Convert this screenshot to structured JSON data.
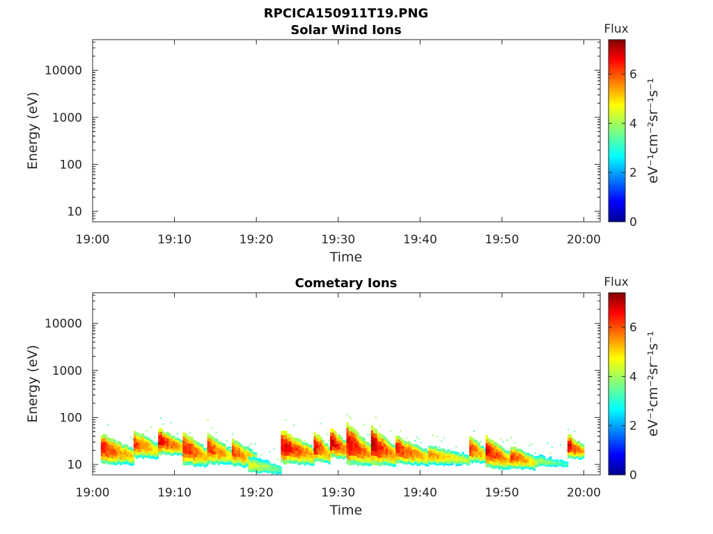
{
  "figure": {
    "title": "RPCICA150911T19.PNG"
  },
  "colorbar": {
    "title": "Flux",
    "label": "eV⁻¹cm⁻²sr⁻¹s⁻¹",
    "range": [
      0,
      7.4
    ],
    "ticks": [
      "0",
      "2",
      "4",
      "6"
    ],
    "colormap": "jet"
  },
  "chart_data": [
    {
      "type": "heatmap",
      "title": "Solar Wind Ions",
      "xlabel": "Time",
      "ylabel": "Energy (eV)",
      "xlim": [
        "19:00",
        "20:02"
      ],
      "ylim": [
        6,
        45000
      ],
      "yscale": "log",
      "x_ticks": [
        "19:00",
        "19:10",
        "19:20",
        "19:30",
        "19:40",
        "19:50",
        "20:00"
      ],
      "y_ticks": [
        "10",
        "100",
        "1000",
        "10000"
      ],
      "grid": false,
      "data": []
    },
    {
      "type": "heatmap",
      "title": "Cometary Ions",
      "xlabel": "Time",
      "ylabel": "Energy (eV)",
      "xlim": [
        "19:00",
        "20:02"
      ],
      "ylim": [
        6,
        45000
      ],
      "yscale": "log",
      "x_ticks": [
        "19:00",
        "19:10",
        "19:20",
        "19:30",
        "19:40",
        "19:50",
        "20:00"
      ],
      "y_ticks": [
        "10",
        "100",
        "1000",
        "10000"
      ],
      "grid": false,
      "bursts": [
        {
          "start": "19:01",
          "end": "19:05",
          "low_eV": 11,
          "high_eV": 45,
          "peak_flux": 6.8
        },
        {
          "start": "19:05",
          "end": "19:08",
          "low_eV": 15,
          "high_eV": 55,
          "peak_flux": 6.5
        },
        {
          "start": "19:08",
          "end": "19:11",
          "low_eV": 18,
          "high_eV": 60,
          "peak_flux": 7.0
        },
        {
          "start": "19:11",
          "end": "19:14",
          "low_eV": 10,
          "high_eV": 50,
          "peak_flux": 6.9
        },
        {
          "start": "19:14",
          "end": "19:17",
          "low_eV": 11,
          "high_eV": 45,
          "peak_flux": 6.6
        },
        {
          "start": "19:17",
          "end": "19:20",
          "low_eV": 10,
          "high_eV": 35,
          "peak_flux": 6.4
        },
        {
          "start": "19:19",
          "end": "19:23",
          "low_eV": 7,
          "high_eV": 15,
          "peak_flux": 4.8
        },
        {
          "start": "19:23",
          "end": "19:27",
          "low_eV": 11,
          "high_eV": 55,
          "peak_flux": 7.2
        },
        {
          "start": "19:27",
          "end": "19:29",
          "low_eV": 12,
          "high_eV": 50,
          "peak_flux": 7.0
        },
        {
          "start": "19:29",
          "end": "19:31",
          "low_eV": 15,
          "high_eV": 60,
          "peak_flux": 7.4
        },
        {
          "start": "19:31",
          "end": "19:34",
          "low_eV": 10,
          "high_eV": 75,
          "peak_flux": 7.2
        },
        {
          "start": "19:34",
          "end": "19:37",
          "low_eV": 10,
          "high_eV": 65,
          "peak_flux": 7.3
        },
        {
          "start": "19:37",
          "end": "19:41",
          "low_eV": 11,
          "high_eV": 40,
          "peak_flux": 6.8
        },
        {
          "start": "19:41",
          "end": "19:46",
          "low_eV": 11,
          "high_eV": 25,
          "peak_flux": 5.8
        },
        {
          "start": "19:46",
          "end": "19:48",
          "low_eV": 12,
          "high_eV": 40,
          "peak_flux": 6.5
        },
        {
          "start": "19:48",
          "end": "19:51",
          "low_eV": 9,
          "high_eV": 40,
          "peak_flux": 7.0
        },
        {
          "start": "19:51",
          "end": "19:54",
          "low_eV": 9,
          "high_eV": 25,
          "peak_flux": 6.5
        },
        {
          "start": "19:54",
          "end": "19:58",
          "low_eV": 10,
          "high_eV": 16,
          "peak_flux": 4.4
        },
        {
          "start": "19:58",
          "end": "20:00",
          "low_eV": 15,
          "high_eV": 45,
          "peak_flux": 7.0
        }
      ]
    }
  ]
}
